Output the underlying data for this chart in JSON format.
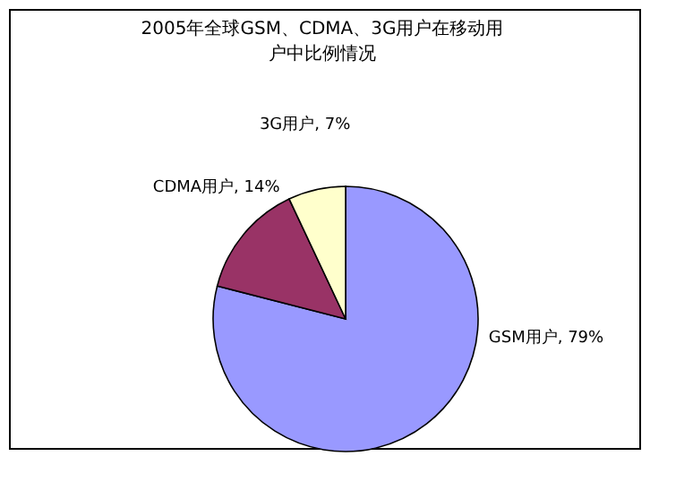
{
  "chart_data": {
    "type": "pie",
    "title": "2005年全球GSM、CDMA、3G用户在移动用户中比例情况",
    "categories": [
      "GSM用户",
      "CDMA用户",
      "3G用户"
    ],
    "values": [
      79,
      14,
      7
    ],
    "value_labels": [
      "79%",
      "14%",
      "7%"
    ],
    "colors": [
      "#9999ff",
      "#993366",
      "#ffffcc"
    ]
  }
}
